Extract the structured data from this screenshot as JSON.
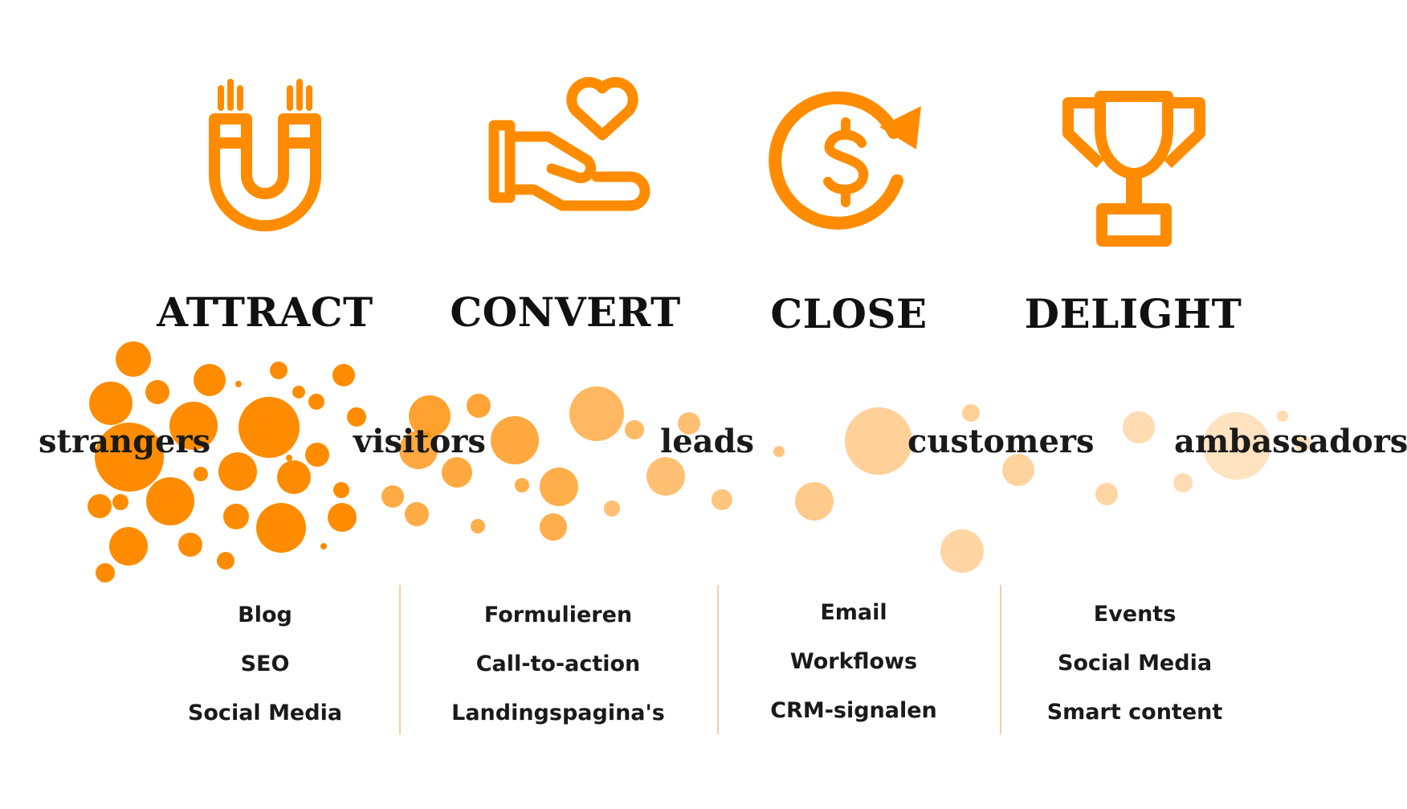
{
  "colors": {
    "accent": "#ff8c00",
    "text": "#1a1a1a"
  },
  "stages": [
    {
      "title": "ATTRACT",
      "icon": "magnet-icon"
    },
    {
      "title": "CONVERT",
      "icon": "hand-heart-icon"
    },
    {
      "title": "CLOSE",
      "icon": "dollar-cycle-icon"
    },
    {
      "title": "DELIGHT",
      "icon": "trophy-icon"
    }
  ],
  "personas": [
    "strangers",
    "visitors",
    "leads",
    "customers",
    "ambassadors"
  ],
  "tactics": [
    [
      "Blog",
      "SEO",
      "Social Media"
    ],
    [
      "Formulieren",
      "Call-to-action",
      "Landingspagina's"
    ],
    [
      "Email",
      "Workflows",
      "CRM-signalen"
    ],
    [
      "Events",
      "Social Media",
      "Smart content"
    ]
  ]
}
